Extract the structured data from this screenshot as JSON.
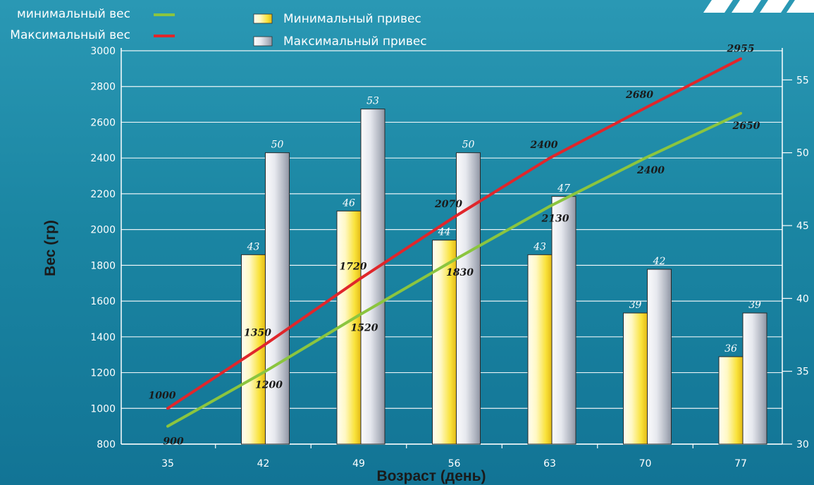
{
  "header": {
    "legend_lines": [
      {
        "label": "минимальный вес",
        "color": "#8bc53f"
      },
      {
        "label": "Максимальный вес",
        "color": "#e0262b"
      }
    ],
    "legend_bars": [
      {
        "label": "Минимальный привес",
        "color": "#f7df2c"
      },
      {
        "label": "Максимальный привес",
        "color": "#b8bdc7"
      }
    ]
  },
  "chart_data": {
    "type": "bar",
    "categories": [
      "35",
      "42",
      "49",
      "56",
      "63",
      "70",
      "77"
    ],
    "xlabel": "Возраст (день)",
    "ylabel": "Вес (гр)",
    "ylim": [
      800,
      3000
    ],
    "yticks": [
      "800",
      "1000",
      "1200",
      "1400",
      "1600",
      "1800",
      "2000",
      "2200",
      "2400",
      "2600",
      "2800",
      "3000"
    ],
    "y2lim": [
      30,
      57
    ],
    "y2ticks": [
      "30",
      "35",
      "40",
      "45",
      "50",
      "55"
    ],
    "grid": true,
    "series": [
      {
        "name": "Минимальный привес",
        "kind": "bar",
        "axis": "right",
        "values": [
          null,
          43,
          46,
          44,
          43,
          39,
          36
        ],
        "labels": [
          "",
          "43",
          "46",
          "44",
          "43",
          "39",
          "36"
        ]
      },
      {
        "name": "Максимальный привес",
        "kind": "bar",
        "axis": "right",
        "values": [
          null,
          50,
          53,
          50,
          47,
          42,
          39
        ],
        "labels": [
          "",
          "50",
          "53",
          "50",
          "47",
          "42",
          "39"
        ]
      },
      {
        "name": "минимальный вес",
        "kind": "line",
        "axis": "left",
        "values": [
          900,
          1200,
          1520,
          1830,
          2130,
          2400,
          2650
        ],
        "labels": [
          "900",
          "1200",
          "1520",
          "1830",
          "2130",
          "2400",
          "2650"
        ]
      },
      {
        "name": "Максимальный вес",
        "kind": "line",
        "axis": "left",
        "values": [
          1000,
          1350,
          1720,
          2070,
          2400,
          2680,
          2955
        ],
        "labels": [
          "1000",
          "1350",
          "1720",
          "2070",
          "2400",
          "2680",
          "2955"
        ]
      }
    ]
  }
}
